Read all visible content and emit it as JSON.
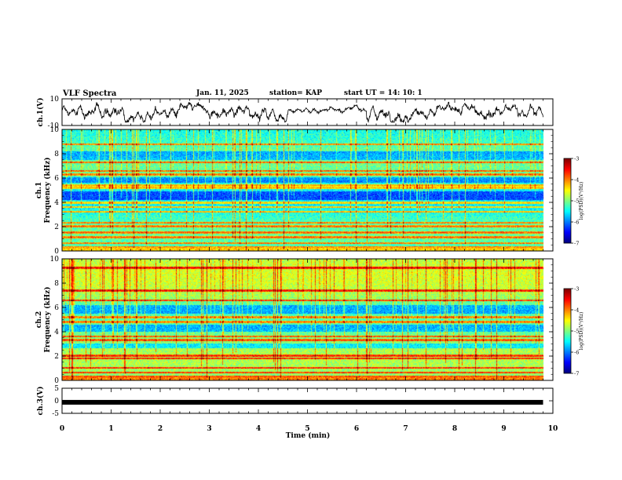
{
  "header": {
    "title": "VLF Spectra",
    "date": "Jan. 11, 2025",
    "station": "station= KAP",
    "start": "start  UT =   14: 10: 1"
  },
  "chart_data": [
    {
      "type": "line",
      "id": "ch1_waveform",
      "ylabel": "ch.1(V)",
      "ylim": [
        -10,
        10
      ],
      "yticks": [
        "10",
        "-10"
      ],
      "xlim": [
        0,
        10
      ],
      "description_series": "noisy waveform between about -7 and 7 V, quieter around minutes 5-6"
    },
    {
      "type": "heatmap",
      "id": "ch1_spectrogram",
      "ylabel_channel": "ch.1",
      "ylabel": "Frequency (kHz)",
      "ylim": [
        0,
        10
      ],
      "yticks": [
        "0",
        "2",
        "4",
        "6",
        "8",
        "10"
      ],
      "xlim": [
        0,
        10
      ],
      "data_end_min": 9.8,
      "colorbar": {
        "label": "log(PSD)(V²/Hz)",
        "range": [
          -7,
          -3
        ],
        "ticks": [
          "-3",
          "-4",
          "-5",
          "-6",
          "-7"
        ]
      },
      "bands_khz": [
        0.3,
        0.6,
        1.1,
        1.5,
        2.0,
        2.3,
        3.2,
        3.6,
        3.95,
        5.2,
        5.4,
        6.3,
        6.6,
        7.3,
        8.8
      ],
      "quiet_zones_khz": [
        [
          4.2,
          4.9
        ],
        [
          5.6,
          6.1
        ],
        [
          7.5,
          8.2
        ]
      ]
    },
    {
      "type": "heatmap",
      "id": "ch2_spectrogram",
      "ylabel_channel": "ch.2",
      "ylabel": "Frequency (kHz)",
      "ylim": [
        0,
        10
      ],
      "yticks": [
        "0",
        "2",
        "4",
        "6",
        "8",
        "10"
      ],
      "xlim": [
        0,
        10
      ],
      "data_end_min": 9.8,
      "colorbar": {
        "label": "log(PSD)(V²/Hz)",
        "range": [
          -7,
          -3
        ],
        "ticks": [
          "-3",
          "-4",
          "-5",
          "-6",
          "-7"
        ]
      },
      "bands_khz": [
        0.3,
        0.6,
        1.0,
        1.8,
        2.0,
        3.3,
        3.6,
        4.8,
        5.2,
        6.6,
        7.4,
        9.3
      ],
      "quiet_zones_khz": [
        [
          2.6,
          3.0
        ],
        [
          4.0,
          4.6
        ],
        [
          5.5,
          6.2
        ]
      ]
    },
    {
      "type": "line",
      "id": "ch3_waveform",
      "ylabel": "ch.3(V)",
      "ylim": [
        -5,
        5
      ],
      "yticks": [
        "5",
        "0",
        "-5"
      ],
      "xlim": [
        0,
        10
      ],
      "level_v": -0.6
    }
  ],
  "xaxis": {
    "label": "Time (min)",
    "ticks": [
      "0",
      "1",
      "2",
      "3",
      "4",
      "5",
      "6",
      "7",
      "8",
      "9",
      "10"
    ]
  },
  "colors": {
    "line": "#000000",
    "frame": "#000000",
    "background": "#ffffff"
  }
}
